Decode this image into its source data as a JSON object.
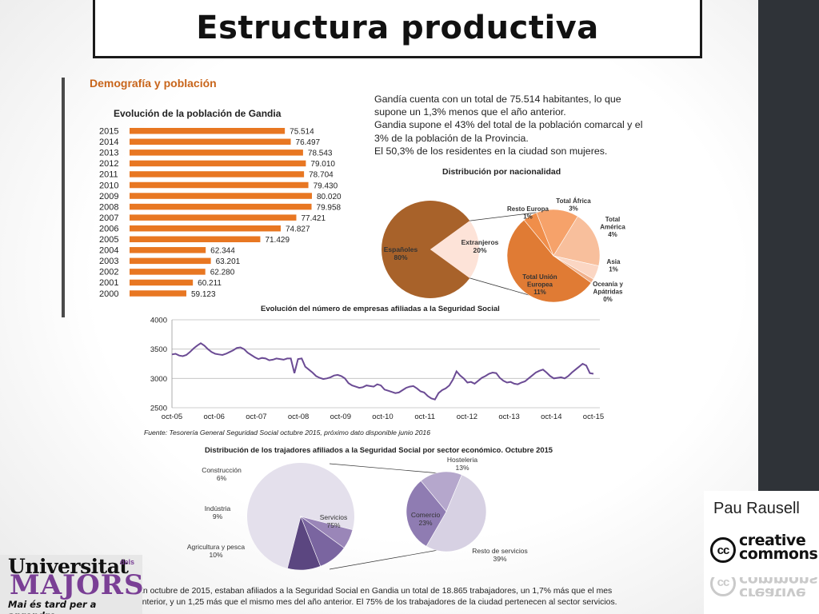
{
  "slide": {
    "title": "Estructura productiva",
    "section_heading": "Demografía y población",
    "author": "Pau Rausell",
    "logo": {
      "line1": "Universitat",
      "dels": "dels",
      "line2": "MAJORS",
      "tagline": "Mai és tard per a aprendre"
    },
    "cc_logo": {
      "circle": "cc",
      "line1": "creative",
      "line2": "commons"
    }
  },
  "info": {
    "lines": [
      "Gandía cuenta con un total de 75.514 habitantes, lo que supone un 1,3% menos que el año anterior.",
      "Gandia supone el 43% del total de la población comarcal y el 3% de la población de la Provincia.",
      "El 50,3% de los residentes en la ciudad son mujeres."
    ]
  },
  "source_note": "Fuente: Tesorería General Seguridad Social octubre 2015, próximo dato disponible junio 2016",
  "footer_text": "En octubre de 2015, estaban afiliados a la Seguridad Social en Gandia un total de 18.865 trabajadores, un 1,7% más que el mes anterior, y un 1,25 más que el mismo mes del año anterior.  El 75% de los trabajadores de la ciudad pertenecen al sector servicios.",
  "colors": {
    "orange_bar": "#e87722",
    "spain_brown": "#a8622a",
    "extranjeros_light": "#fde3d8",
    "line_purple": "#6b4b94",
    "servicios_light": "#e4e0ec",
    "dark_bar": "#2f3338"
  },
  "chart_data": [
    {
      "type": "bar",
      "title": "Evolución de la población de Gandia",
      "categories": [
        "2015",
        "2014",
        "2013",
        "2012",
        "2011",
        "2010",
        "2009",
        "2008",
        "2007",
        "2006",
        "2005",
        "2004",
        "2003",
        "2002",
        "2001",
        "2000"
      ],
      "values": [
        75514,
        76497,
        78543,
        79010,
        78704,
        79430,
        80020,
        79958,
        77421,
        74827,
        71429,
        62344,
        63201,
        62280,
        60211,
        59123
      ],
      "labels": [
        "75.514",
        "76.497",
        "78.543",
        "79.010",
        "78.704",
        "79.430",
        "80.020",
        "79.958",
        "77.421",
        "74.827",
        "71.429",
        "62.344",
        "63.201",
        "62.280",
        "60.211",
        "59.123"
      ],
      "orientation": "horizontal",
      "grid": false
    },
    {
      "type": "pie",
      "title": "Distribución por nacionalidad",
      "main": [
        {
          "name": "Españoles",
          "value": 80,
          "label": "80%"
        },
        {
          "name": "Extranjeros",
          "value": 20,
          "label": "20%"
        }
      ],
      "breakdown": [
        {
          "name": "Total África",
          "value": 3,
          "label": "3%"
        },
        {
          "name": "Total América",
          "value": 4,
          "label": "4%"
        },
        {
          "name": "Asia",
          "value": 1,
          "label": "1%"
        },
        {
          "name": "Oceanía y Apátridas",
          "value": 0,
          "label": "0%"
        },
        {
          "name": "Total Unión Europea",
          "value": 11,
          "label": "11%"
        },
        {
          "name": "Resto Europa",
          "value": 1,
          "label": "1%"
        }
      ]
    },
    {
      "type": "line",
      "title": "Evolución del número de empresas afiliadas a la Seguridad Social",
      "x_tick_labels": [
        "oct-05",
        "oct-06",
        "oct-07",
        "oct-08",
        "oct-09",
        "oct-10",
        "oct-11",
        "oct-12",
        "oct-13",
        "oct-14",
        "oct-15"
      ],
      "ylim": [
        2500,
        4000
      ],
      "y_ticks": [
        2500,
        3000,
        3500,
        4000
      ],
      "grid": true,
      "series": [
        {
          "values": [
            3410,
            3420,
            3390,
            3380,
            3400,
            3450,
            3510,
            3560,
            3600,
            3560,
            3500,
            3450,
            3420,
            3410,
            3400,
            3420,
            3450,
            3480,
            3520,
            3530,
            3500,
            3440,
            3400,
            3360,
            3330,
            3350,
            3340,
            3310,
            3320,
            3340,
            3330,
            3320,
            3340,
            3340,
            3090,
            3330,
            3340,
            3200,
            3150,
            3100,
            3040,
            3010,
            2990,
            3000,
            3020,
            3050,
            3060,
            3040,
            3000,
            2920,
            2880,
            2860,
            2840,
            2850,
            2880,
            2870,
            2860,
            2900,
            2880,
            2810,
            2790,
            2770,
            2750,
            2760,
            2800,
            2840,
            2860,
            2870,
            2830,
            2780,
            2760,
            2700,
            2660,
            2640,
            2750,
            2800,
            2830,
            2880,
            2980,
            3120,
            3050,
            3000,
            2930,
            2940,
            2910,
            2960,
            3010,
            3040,
            3080,
            3100,
            3090,
            3010,
            2960,
            2930,
            2940,
            2910,
            2900,
            2930,
            2950,
            3000,
            3050,
            3100,
            3130,
            3150,
            3100,
            3040,
            3000,
            3010,
            3020,
            3000,
            3040,
            3100,
            3150,
            3200,
            3250,
            3220,
            3090,
            3080
          ]
        }
      ]
    },
    {
      "type": "pie",
      "title": "Distribución de los trajadores afiliados a la Seguridad Social por sector económico. Octubre 2015",
      "main": [
        {
          "name": "Servicios",
          "value": 75,
          "label": "75%"
        },
        {
          "name": "Construcción",
          "value": 6,
          "label": "6%"
        },
        {
          "name": "Indústria",
          "value": 9,
          "label": "9%"
        },
        {
          "name": "Agricultura y pesca",
          "value": 10,
          "label": "10%"
        }
      ],
      "breakdown": [
        {
          "name": "Hosteleria",
          "value": 13,
          "label": "13%"
        },
        {
          "name": "Comercio",
          "value": 23,
          "label": "23%"
        },
        {
          "name": "Resto de servicios",
          "value": 39,
          "label": "39%"
        }
      ]
    }
  ]
}
